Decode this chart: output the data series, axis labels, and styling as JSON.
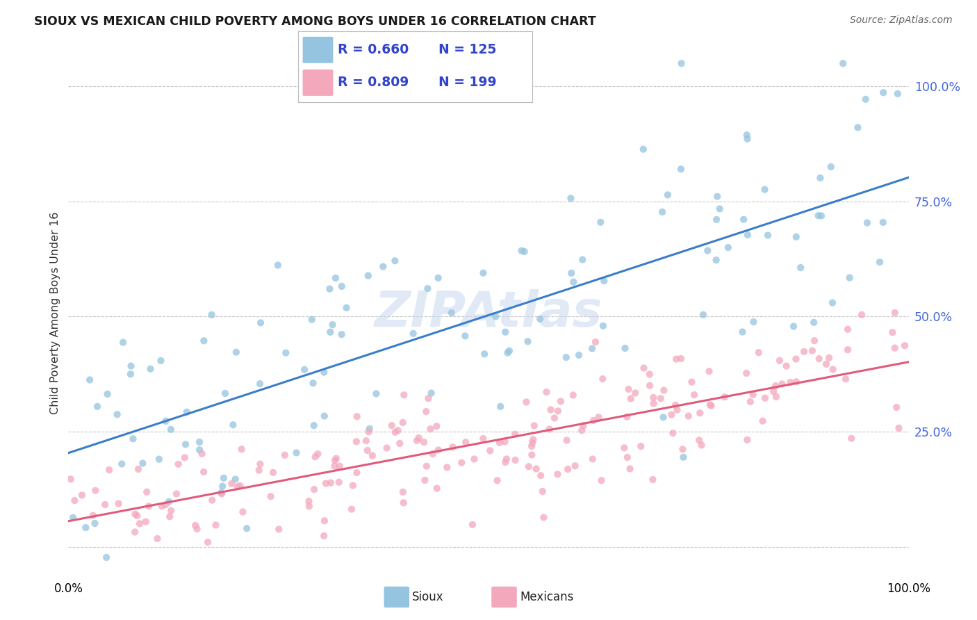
{
  "title": "SIOUX VS MEXICAN CHILD POVERTY AMONG BOYS UNDER 16 CORRELATION CHART",
  "source": "Source: ZipAtlas.com",
  "ylabel": "Child Poverty Among Boys Under 16",
  "watermark": "ZIPAtlas",
  "sioux_R": "0.660",
  "sioux_N": "125",
  "mexican_R": "0.809",
  "mexican_N": "199",
  "sioux_color": "#94c4e0",
  "mexican_color": "#f4a8bc",
  "sioux_line_color": "#3a7dc9",
  "mexican_line_color": "#e05a7a",
  "background_color": "#ffffff",
  "grid_color": "#c8c8c8",
  "title_color": "#1a1a1a",
  "legend_text_color": "#3344cc",
  "legend_box_color": "#e8e8f8",
  "ytick_color": "#4466dd",
  "sioux_intercept": 0.18,
  "sioux_slope": 0.6,
  "sioux_noise": 0.16,
  "mexican_intercept": 0.08,
  "mexican_slope": 0.32,
  "mexican_noise": 0.07,
  "sioux_seed": 42,
  "mexican_seed": 123
}
